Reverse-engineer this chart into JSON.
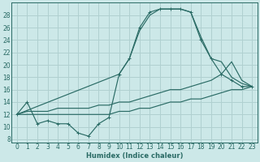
{
  "xlabel": "Humidex (Indice chaleur)",
  "bg_color": "#cce8e8",
  "grid_color": "#b0d0d0",
  "line_color": "#2a6b65",
  "xlim": [
    -0.5,
    23.5
  ],
  "ylim": [
    7.5,
    30
  ],
  "xticks": [
    0,
    1,
    2,
    3,
    4,
    5,
    6,
    7,
    8,
    9,
    10,
    11,
    12,
    13,
    14,
    15,
    16,
    17,
    18,
    19,
    20,
    21,
    22,
    23
  ],
  "yticks": [
    8,
    10,
    12,
    14,
    16,
    18,
    20,
    22,
    24,
    26,
    28
  ],
  "line_curve_x": [
    0,
    1,
    2,
    3,
    4,
    5,
    6,
    7,
    8,
    9,
    10,
    11,
    12,
    13,
    14,
    15,
    16,
    17,
    18,
    19,
    20,
    21,
    22,
    23
  ],
  "line_curve_y": [
    12.0,
    14.0,
    10.5,
    11.0,
    10.5,
    10.5,
    9.0,
    8.5,
    10.5,
    11.5,
    18.5,
    21.0,
    26.0,
    28.5,
    29.0,
    29.0,
    29.0,
    28.5,
    24.0,
    21.0,
    18.5,
    17.5,
    16.5,
    16.5
  ],
  "line_upper_x": [
    0,
    10,
    11,
    12,
    13,
    14,
    15,
    16,
    17,
    18,
    19,
    20,
    21,
    22,
    23
  ],
  "line_upper_y": [
    12.0,
    18.5,
    21.0,
    25.5,
    28.0,
    29.0,
    29.0,
    29.0,
    28.5,
    24.5,
    21.0,
    20.5,
    18.0,
    17.0,
    16.5
  ],
  "line_mid_x": [
    0,
    1,
    2,
    3,
    4,
    5,
    6,
    7,
    8,
    9,
    10,
    11,
    12,
    13,
    14,
    15,
    16,
    17,
    18,
    19,
    20,
    21,
    22,
    23
  ],
  "line_mid_y": [
    12.0,
    12.5,
    12.5,
    12.5,
    13.0,
    13.0,
    13.0,
    13.0,
    13.5,
    13.5,
    14.0,
    14.0,
    14.5,
    15.0,
    15.5,
    16.0,
    16.0,
    16.5,
    17.0,
    17.5,
    18.5,
    20.5,
    17.5,
    16.5
  ],
  "line_low_x": [
    0,
    1,
    2,
    3,
    4,
    5,
    6,
    7,
    8,
    9,
    10,
    11,
    12,
    13,
    14,
    15,
    16,
    17,
    18,
    19,
    20,
    21,
    22,
    23
  ],
  "line_low_y": [
    12.0,
    12.0,
    12.0,
    12.0,
    12.0,
    12.0,
    12.0,
    12.0,
    12.0,
    12.0,
    12.5,
    12.5,
    13.0,
    13.0,
    13.5,
    14.0,
    14.0,
    14.5,
    14.5,
    15.0,
    15.5,
    16.0,
    16.0,
    16.5
  ]
}
